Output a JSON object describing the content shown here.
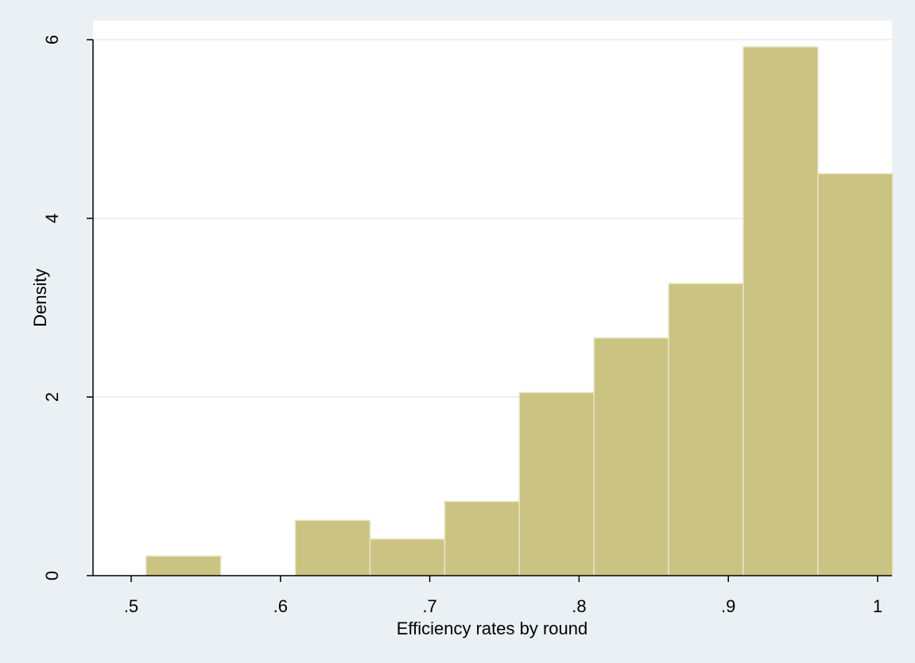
{
  "chart_data": {
    "type": "bar",
    "subtype": "histogram",
    "title": "",
    "xlabel": "Efficiency rates by round",
    "ylabel": "Density",
    "xlim": [
      0.5,
      1.0
    ],
    "ylim": [
      0,
      6
    ],
    "x_ticks": [
      {
        "value": 0.5,
        "label": ".5"
      },
      {
        "value": 0.6,
        "label": ".6"
      },
      {
        "value": 0.7,
        "label": ".7"
      },
      {
        "value": 0.8,
        "label": ".8"
      },
      {
        "value": 0.9,
        "label": ".9"
      },
      {
        "value": 1.0,
        "label": "1"
      }
    ],
    "y_ticks": [
      {
        "value": 0,
        "label": "0"
      },
      {
        "value": 2,
        "label": "2"
      },
      {
        "value": 4,
        "label": "4"
      },
      {
        "value": 6,
        "label": "6"
      }
    ],
    "grid": true,
    "bins": [
      {
        "x0": 0.51,
        "x1": 0.56,
        "value": 0.22
      },
      {
        "x0": 0.56,
        "x1": 0.61,
        "value": 0.0
      },
      {
        "x0": 0.61,
        "x1": 0.66,
        "value": 0.62
      },
      {
        "x0": 0.66,
        "x1": 0.71,
        "value": 0.41
      },
      {
        "x0": 0.71,
        "x1": 0.76,
        "value": 0.83
      },
      {
        "x0": 0.76,
        "x1": 0.81,
        "value": 2.05
      },
      {
        "x0": 0.81,
        "x1": 0.86,
        "value": 2.66
      },
      {
        "x0": 0.86,
        "x1": 0.91,
        "value": 3.27
      },
      {
        "x0": 0.91,
        "x1": 0.96,
        "value": 5.92
      },
      {
        "x0": 0.96,
        "x1": 1.01,
        "value": 4.5
      }
    ],
    "colors": {
      "bar_fill": "#cbc382",
      "bar_stroke": "#e9e4c4",
      "plot_bg": "#ffffff",
      "page_bg": "#eaf0f3",
      "grid": "#e6ecef",
      "axis": "#000000"
    }
  }
}
